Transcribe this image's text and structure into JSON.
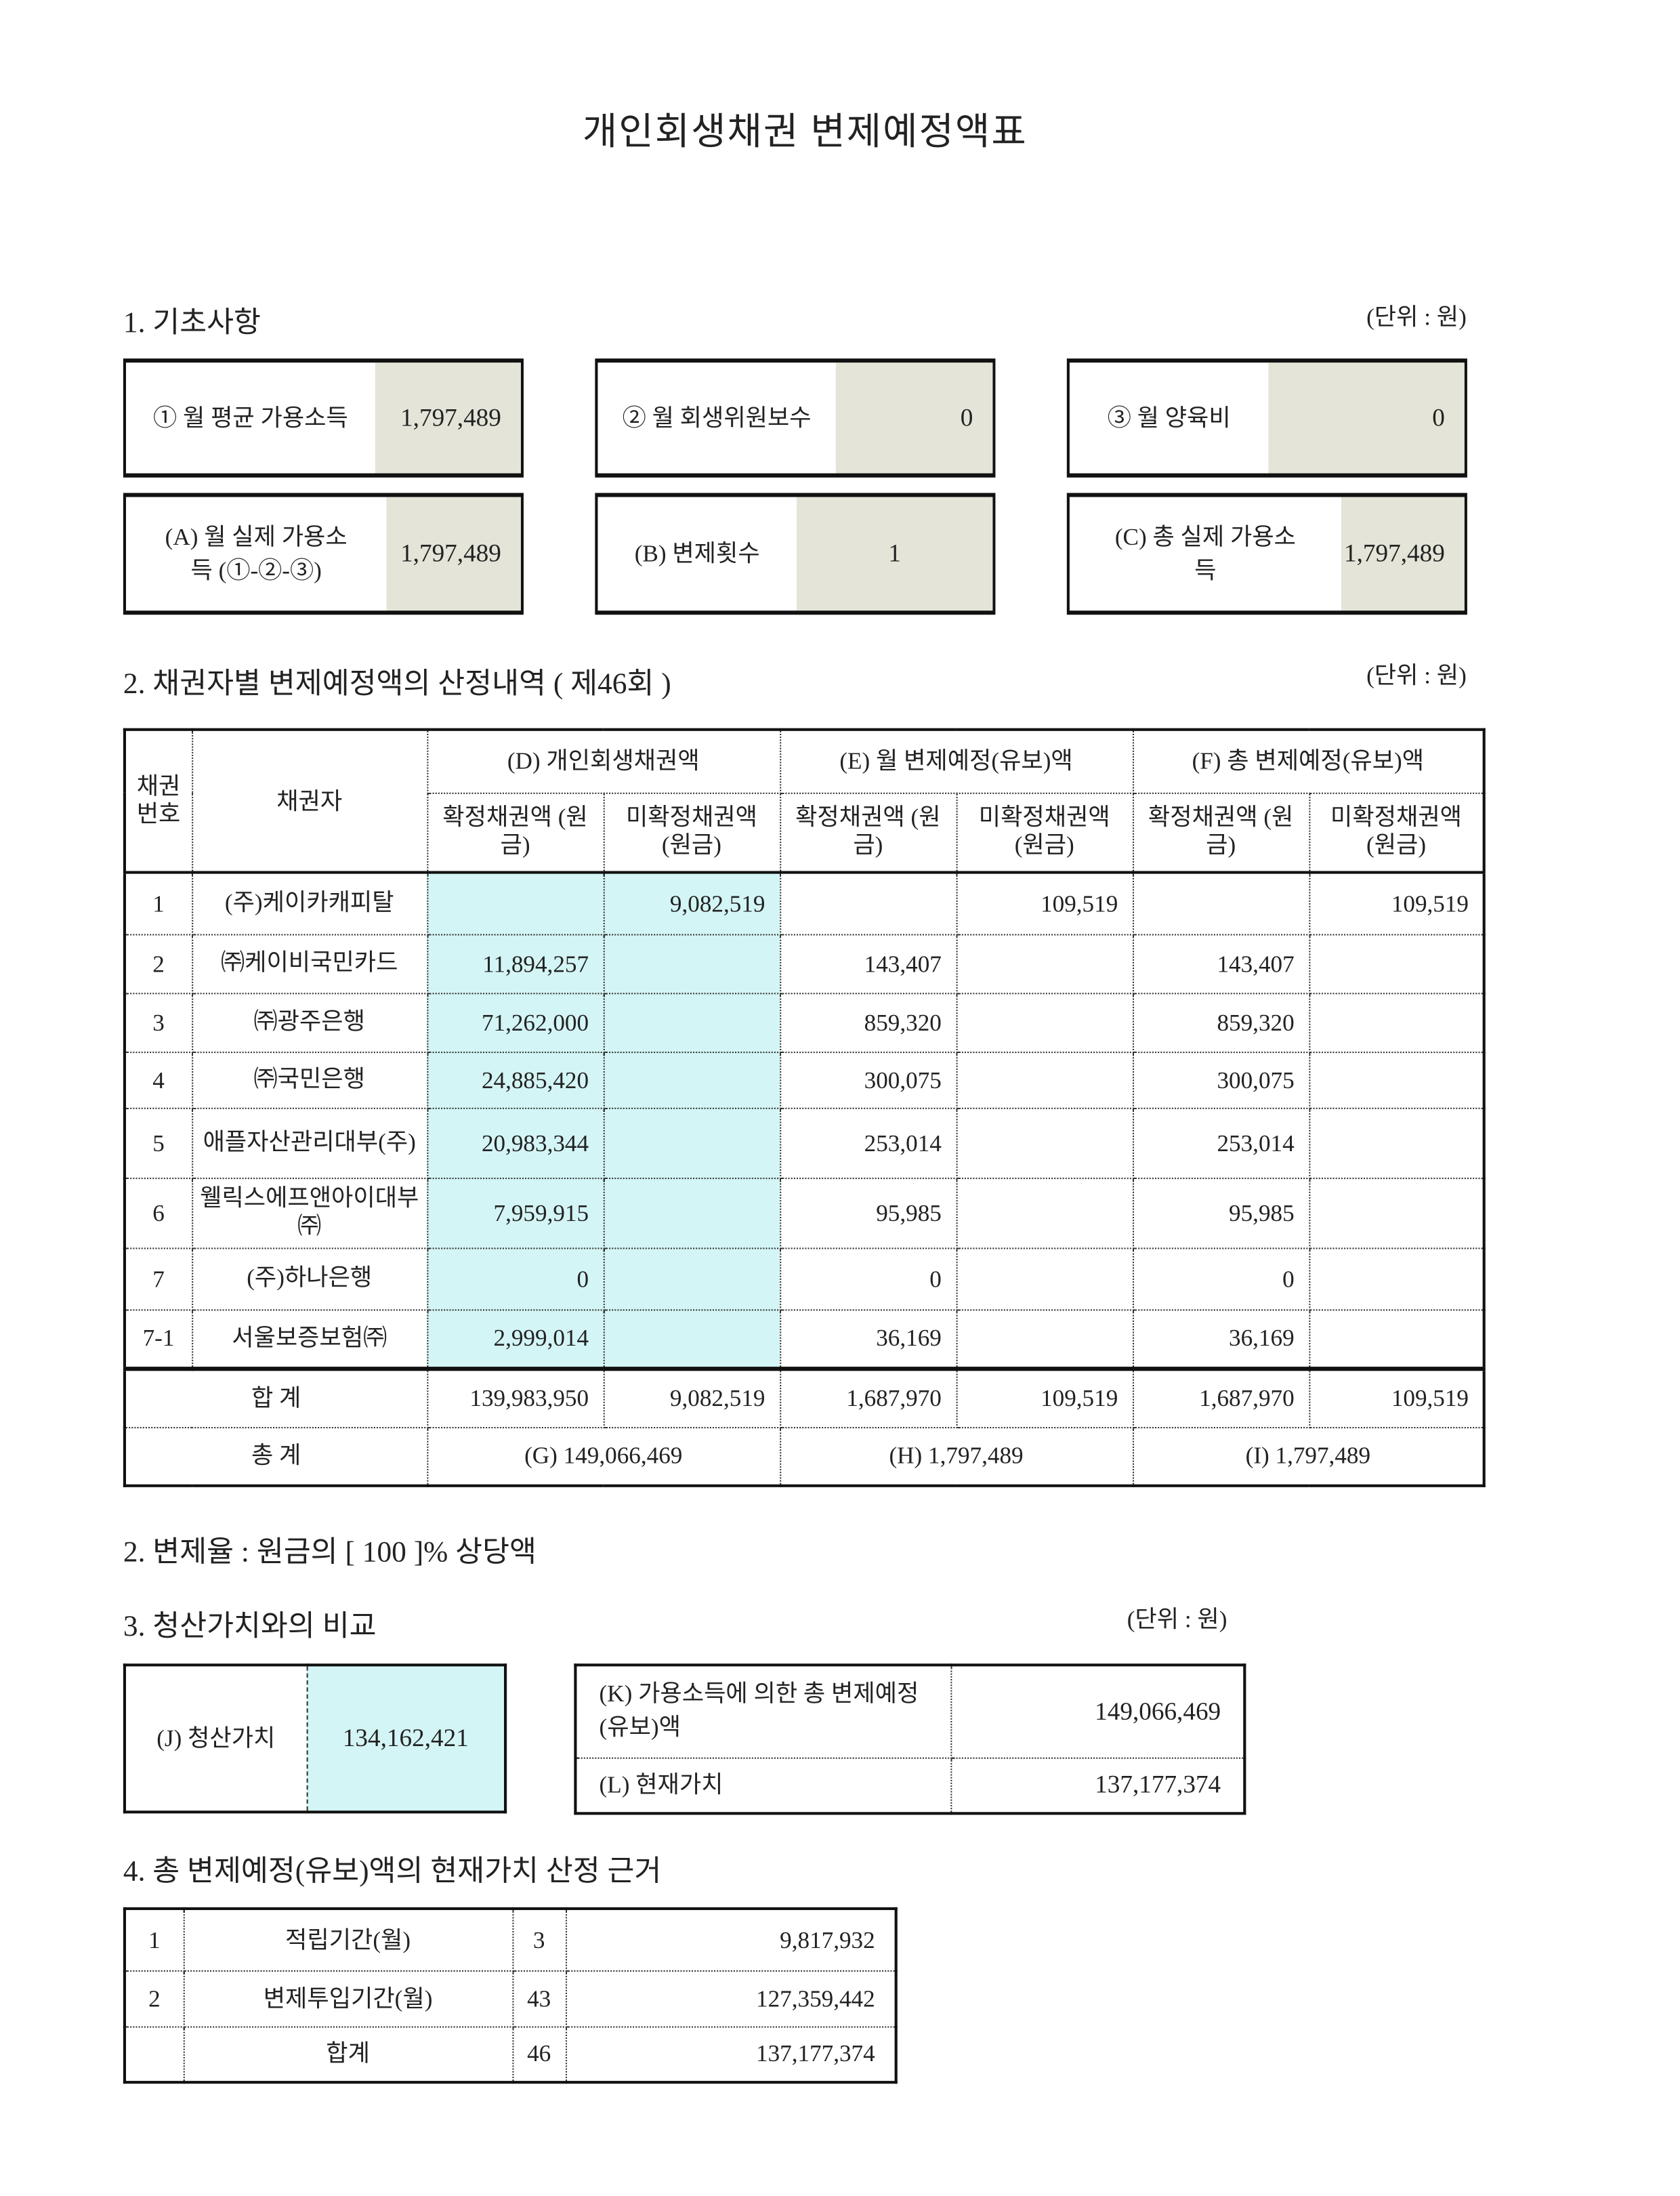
{
  "title": "개인회생채권 변제예정액표",
  "unit_label": "(단위 : 원)",
  "section1": {
    "heading": "1. 기초사항",
    "boxes": [
      {
        "label": "① 월 평균 가용소득",
        "value": "1,797,489"
      },
      {
        "label": "② 월 회생위원보수",
        "value": "0"
      },
      {
        "label": "③ 월 양육비",
        "value": "0"
      },
      {
        "label": "(A) 월 실제 가용소득 (①-②-③)",
        "value": "1,797,489"
      },
      {
        "label": "(B) 변제횟수",
        "value": "1"
      },
      {
        "label": "(C) 총 실제 가용소득",
        "value": "1,797,489"
      }
    ]
  },
  "section2": {
    "heading": "2. 채권자별 변제예정액의 산정내역 ( 제46회 )",
    "headers": {
      "no": "채권 번호",
      "creditor": "채권자",
      "D": "(D) 개인회생채권액",
      "E": "(E) 월 변제예정(유보)액",
      "F": "(F) 총 변제예정(유보)액",
      "confirmed": "확정채권액 (원금)",
      "unconfirmed": "미확정채권액 (원금)"
    },
    "rows": [
      [
        "1",
        "(주)케이카캐피탈",
        "",
        "9,082,519",
        "",
        "109,519",
        "",
        "109,519"
      ],
      [
        "2",
        "㈜케이비국민카드",
        "11,894,257",
        "",
        "143,407",
        "",
        "143,407",
        ""
      ],
      [
        "3",
        "㈜광주은행",
        "71,262,000",
        "",
        "859,320",
        "",
        "859,320",
        ""
      ],
      [
        "4",
        "㈜국민은행",
        "24,885,420",
        "",
        "300,075",
        "",
        "300,075",
        ""
      ],
      [
        "5",
        "애플자산관리대부(주)",
        "20,983,344",
        "",
        "253,014",
        "",
        "253,014",
        ""
      ],
      [
        "6",
        "웰릭스에프앤아이대부㈜",
        "7,959,915",
        "",
        "95,985",
        "",
        "95,985",
        ""
      ],
      [
        "7",
        "(주)하나은행",
        "0",
        "",
        "0",
        "",
        "0",
        ""
      ],
      [
        "7-1",
        "서울보증보험㈜",
        "2,999,014",
        "",
        "36,169",
        "",
        "36,169",
        ""
      ]
    ],
    "subtotal": {
      "label": "합 계",
      "values": [
        "139,983,950",
        "9,082,519",
        "1,687,970",
        "109,519",
        "1,687,970",
        "109,519"
      ]
    },
    "total": {
      "label": "총 계",
      "G": "(G) 149,066,469",
      "H": "(H) 1,797,489",
      "I": "(I) 1,797,489"
    }
  },
  "rate": {
    "heading": "2. 변제율 : 원금의 [ 100 ]% 상당액"
  },
  "section3": {
    "heading": "3. 청산가치와의 비교",
    "J_label": "(J) 청산가치",
    "J_value": "134,162,421",
    "K_label": "(K) 가용소득에 의한 총 변제예정(유보)액",
    "K_value": "149,066,469",
    "L_label": "(L) 현재가치",
    "L_value": "137,177,374"
  },
  "section4": {
    "heading": "4. 총 변제예정(유보)액의 현재가치 산정 근거",
    "rows": [
      {
        "no": "1",
        "label": "적립기간(월)",
        "months": "3",
        "amount": "9,817,932"
      },
      {
        "no": "2",
        "label": "변제투입기간(월)",
        "months": "43",
        "amount": "127,359,442"
      },
      {
        "no": "",
        "label": "합계",
        "months": "46",
        "amount": "137,177,374"
      }
    ]
  },
  "colors": {
    "gray_cell": "#e4e5d8",
    "cyan_cell": "#d4f5f5"
  }
}
